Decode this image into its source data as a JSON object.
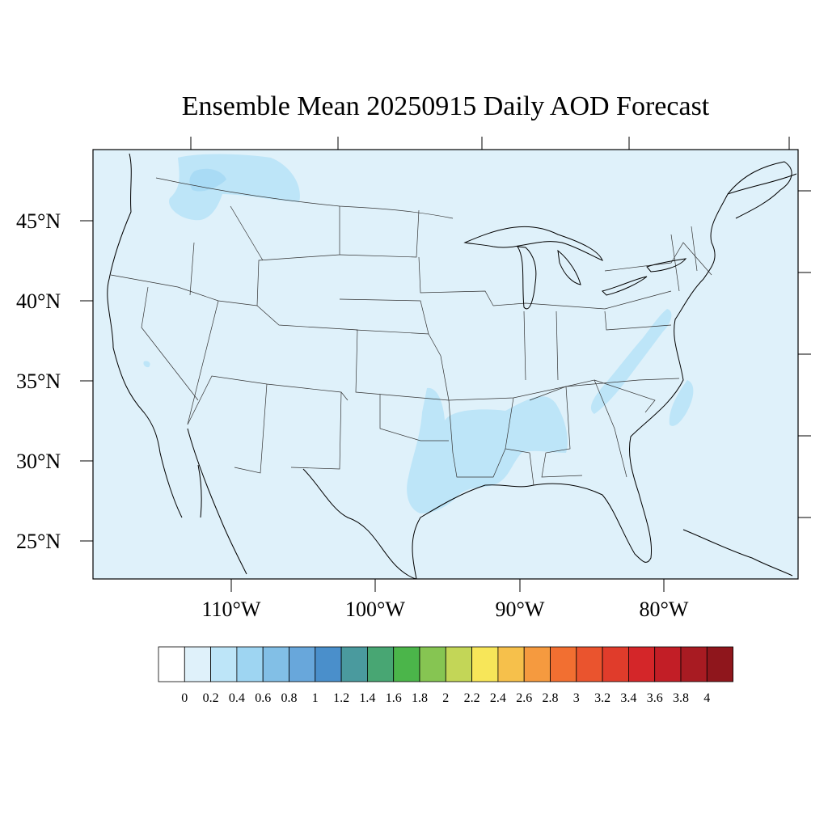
{
  "title": "Ensemble Mean 20250915 Daily AOD Forecast",
  "map": {
    "region": "Continental United States",
    "background_color": "#dff1fa",
    "lat_labels": [
      "45°N",
      "40°N",
      "35°N",
      "30°N",
      "25°N"
    ],
    "lon_labels": [
      "110°W",
      "100°W",
      "90°W",
      "80°W"
    ]
  },
  "colorbar": {
    "labels": [
      "0",
      "0.2",
      "0.4",
      "0.6",
      "0.8",
      "1",
      "1.2",
      "1.4",
      "1.6",
      "1.8",
      "2",
      "2.2",
      "2.4",
      "2.6",
      "2.8",
      "3",
      "3.2",
      "3.4",
      "3.6",
      "3.8",
      "4"
    ],
    "colors": [
      "#ffffff",
      "#dff1fa",
      "#bde5f8",
      "#9ed5f2",
      "#82bfe6",
      "#68a7db",
      "#4a8fcb",
      "#4a9a9e",
      "#48a673",
      "#4bb54a",
      "#86c552",
      "#c3d657",
      "#f7e659",
      "#f6c04b",
      "#f59a3f",
      "#f26f31",
      "#ea542e",
      "#e03c2b",
      "#d42629",
      "#c21e26",
      "#a81b22",
      "#8f161c"
    ]
  },
  "aod_regions": {
    "background_range": "0–0.2",
    "elevated_range": "0.2–0.4",
    "elevated_areas": [
      "Pacific Northwest / northern Rockies",
      "Texas and Gulf Coast",
      "Arkansas–Louisiana–Mississippi–Alabama",
      "Appalachians (Virginia to Pennsylvania)",
      "Atlantic off North Carolina"
    ]
  }
}
